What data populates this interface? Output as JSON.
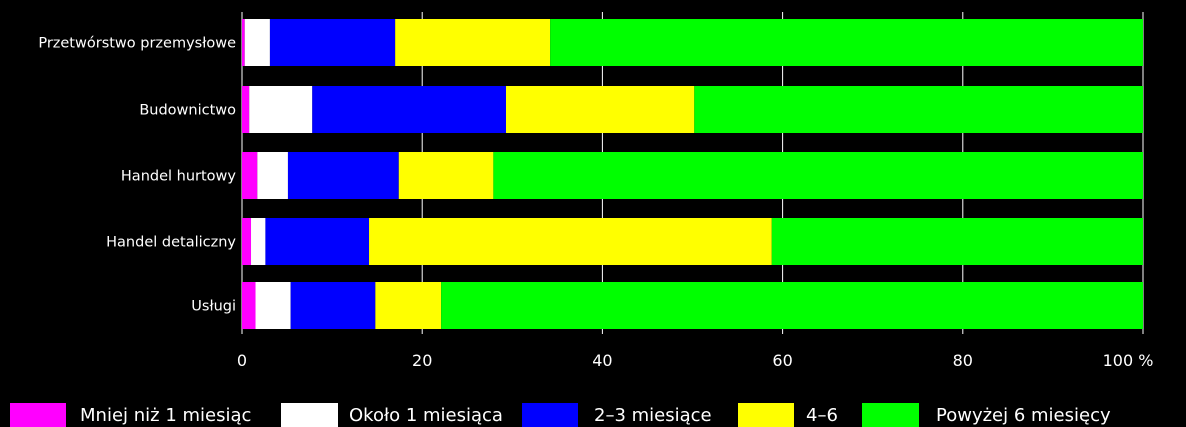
{
  "chart_data": {
    "type": "bar",
    "orientation": "horizontal",
    "stacked": true,
    "categories": [
      "Przetwórstwo przemysłowe",
      "Budownictwo",
      "Handel hurtowy",
      "Handel detaliczny",
      "Usługi"
    ],
    "series": [
      {
        "name": "Mniej niż 1 miesiąc",
        "color": "#ff00ff",
        "values": [
          0.3,
          0.8,
          1.7,
          1.0,
          1.5
        ]
      },
      {
        "name": "Około 1 miesiąca",
        "color": "#ffffff",
        "values": [
          2.8,
          7.0,
          3.4,
          1.6,
          3.9
        ]
      },
      {
        "name": "2–3 miesiące",
        "color": "#0000ff",
        "values": [
          13.9,
          21.5,
          12.3,
          11.5,
          9.4
        ]
      },
      {
        "name": "4–6",
        "color": "#ffff00",
        "values": [
          17.2,
          20.9,
          10.5,
          44.7,
          7.3
        ]
      },
      {
        "name": "Powyżej 6 miesięcy",
        "color": "#00ff00",
        "values": [
          65.8,
          49.8,
          72.1,
          41.2,
          77.9
        ]
      }
    ],
    "xlim": [
      0,
      100
    ],
    "ticks": [
      "0",
      "20",
      "40",
      "60",
      "80",
      "100 %"
    ],
    "grid": true,
    "legend": "bottom"
  }
}
